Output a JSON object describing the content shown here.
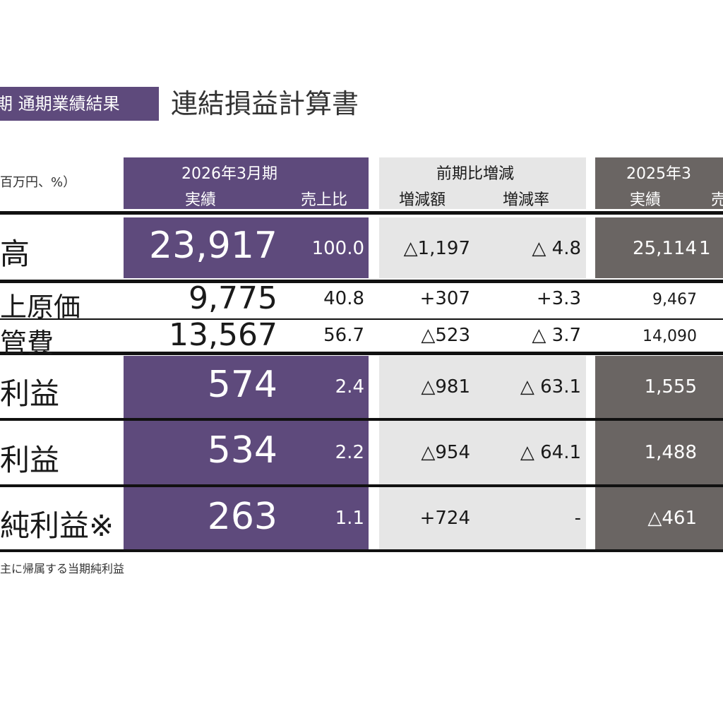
{
  "header": {
    "tag": "期 通期業績結果",
    "title": "連結損益計算書",
    "unit": "百万円、%）"
  },
  "columns": {
    "current": {
      "period": "2026年3月期",
      "actual": "実績",
      "ratio": "売上比"
    },
    "change": {
      "title": "前期比増減",
      "amount": "増減額",
      "rate": "増減率"
    },
    "previous": {
      "period": "2025年3",
      "actual": "実績",
      "ratio": "売"
    }
  },
  "rows": [
    {
      "label": "高",
      "current": "23,917",
      "ratio": "100.0",
      "change_amount": "△1,197",
      "change_rate": "△ 4.8",
      "previous": "25,114",
      "prev_ratio": "1"
    },
    {
      "label": "上原価",
      "current": "9,775",
      "ratio": "40.8",
      "change_amount": "+307",
      "change_rate": "+3.3",
      "previous": "9,467",
      "prev_ratio": ""
    },
    {
      "label": "管費",
      "current": "13,567",
      "ratio": "56.7",
      "change_amount": "△523",
      "change_rate": "△ 3.7",
      "previous": "14,090",
      "prev_ratio": ""
    },
    {
      "label": "利益",
      "current": "574",
      "ratio": "2.4",
      "change_amount": "△981",
      "change_rate": "△ 63.1",
      "previous": "1,555",
      "prev_ratio": ""
    },
    {
      "label": "利益",
      "current": "534",
      "ratio": "2.2",
      "change_amount": "△954",
      "change_rate": "△ 64.1",
      "previous": "1,488",
      "prev_ratio": ""
    },
    {
      "label": "純利益※",
      "current": "263",
      "ratio": "1.1",
      "change_amount": "+724",
      "change_rate": "-",
      "previous": "△461",
      "prev_ratio": ""
    }
  ],
  "note": "主に帰属する当期純利益",
  "colors": {
    "purple": "#5e4a7c",
    "gray": "#e6e6e6",
    "dark": "#6a6563"
  }
}
